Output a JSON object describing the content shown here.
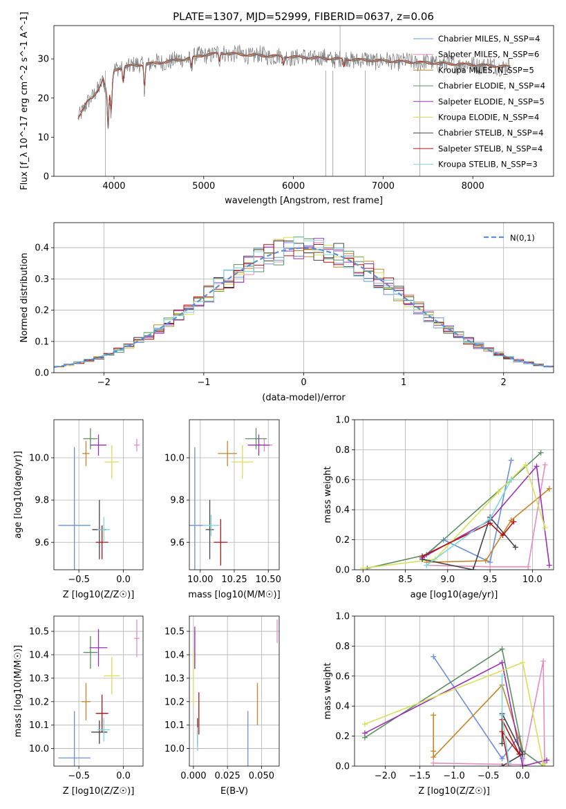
{
  "title": "PLATE=1307, MJD=52999, FIBERID=0637, z=0.06",
  "colors": [
    "#6a8fd8",
    "#e48bbd",
    "#c78424",
    "#5b8d5f",
    "#9a2fb5",
    "#d6e05a",
    "#444444",
    "#b31212",
    "#7ed6dc"
  ],
  "chart_data": [
    {
      "type": "line",
      "id": "spectrum",
      "xlabel": "wavelength [Angstrom, rest frame]",
      "ylabel": "Flux [f_λ 10^-17 erg cm^-2 s^-1 A^-1]",
      "xlim": [
        3330,
        8900
      ],
      "ylim": [
        0,
        38.5
      ],
      "xticks": [
        4000,
        5000,
        6000,
        7000,
        8000
      ],
      "yticks": [
        0,
        10,
        20,
        30
      ],
      "grid": false,
      "legend_position": "top-right",
      "series": [
        {
          "name": "Chabrier MILES, N_SSP=4"
        },
        {
          "name": "Salpeter MILES, N_SSP=6"
        },
        {
          "name": "Kroupa MILES, N_SSP=5"
        },
        {
          "name": "Chabrier ELODIE, N_SSP=4"
        },
        {
          "name": "Salpeter ELODIE, N_SSP=5"
        },
        {
          "name": "Kroupa ELODIE, N_SSP=4"
        },
        {
          "name": "Chabrier STELIB, N_SSP=4"
        },
        {
          "name": "Salpeter STELIB, N_SSP=4"
        },
        {
          "name": "Kroupa STELIB, N_SSP=3"
        }
      ],
      "continuum_points": [
        [
          3600,
          15
        ],
        [
          3650,
          17
        ],
        [
          3700,
          19
        ],
        [
          3760,
          20
        ],
        [
          3820,
          22
        ],
        [
          3880,
          25
        ],
        [
          3930,
          20
        ],
        [
          3970,
          22
        ],
        [
          4000,
          27
        ],
        [
          4100,
          28
        ],
        [
          4300,
          28.5
        ],
        [
          4500,
          29
        ],
        [
          4800,
          30
        ],
        [
          5000,
          31
        ],
        [
          5200,
          31.5
        ],
        [
          5500,
          31
        ],
        [
          6000,
          30.5
        ],
        [
          6500,
          30
        ],
        [
          7000,
          29.5
        ],
        [
          7500,
          29
        ],
        [
          8000,
          28.5
        ],
        [
          8400,
          28
        ]
      ]
    },
    {
      "type": "bar",
      "id": "residuals",
      "xlabel": "(data-model)/error",
      "ylabel": "Normed distribution",
      "xlim": [
        -2.5,
        2.5
      ],
      "ylim": [
        0,
        0.48
      ],
      "xticks": [
        -2,
        -1,
        0,
        1,
        2
      ],
      "xticklabels": [
        "−2",
        "−1",
        "0",
        "1",
        "2"
      ],
      "yticks": [
        0.0,
        0.1,
        0.2,
        0.3,
        0.4
      ],
      "yticklabels": [
        "0.0",
        "0.1",
        "0.2",
        "0.3",
        "0.4"
      ],
      "grid": true,
      "legend_position": "top-right",
      "reference_curve": {
        "name": "N(0,1)",
        "mean": 0,
        "sigma": 1
      },
      "bin_width": 0.1
    },
    {
      "type": "scatter",
      "id": "age-vs-Z",
      "xlabel": "Z [log10(Z/Z☉)]",
      "ylabel": "age  [log10(age/yr)]",
      "xlim": [
        -0.78,
        0.22
      ],
      "ylim": [
        9.47,
        10.18
      ],
      "xticks": [
        -0.5,
        0.0
      ],
      "xticklabels": [
        "−0.5",
        "0.0"
      ],
      "yticks": [
        9.6,
        9.8,
        10.0
      ],
      "yticklabels": [
        "9.6",
        "9.8",
        "10.0"
      ],
      "grid": true,
      "points": [
        {
          "x": -0.55,
          "y": 9.68,
          "xerr": 0.18,
          "yerr": 0.37
        },
        {
          "x": 0.15,
          "y": 10.06,
          "xerr": 0.03,
          "yerr": 0.03
        },
        {
          "x": -0.42,
          "y": 10.02,
          "xerr": 0.04,
          "yerr": 0.06
        },
        {
          "x": -0.37,
          "y": 10.09,
          "xerr": 0.08,
          "yerr": 0.05
        },
        {
          "x": -0.28,
          "y": 10.06,
          "xerr": 0.09,
          "yerr": 0.05
        },
        {
          "x": -0.13,
          "y": 9.98,
          "xerr": 0.08,
          "yerr": 0.08
        },
        {
          "x": -0.27,
          "y": 9.66,
          "xerr": 0.08,
          "yerr": 0.14
        },
        {
          "x": -0.24,
          "y": 9.6,
          "xerr": 0.07,
          "yerr": 0.08
        },
        {
          "x": -0.22,
          "y": 9.66,
          "xerr": 0.07,
          "yerr": 0.06
        }
      ]
    },
    {
      "type": "scatter",
      "id": "age-vs-mass",
      "xlabel": "mass [log10(M/M☉)]",
      "ylabel": "",
      "xlim": [
        9.92,
        10.58
      ],
      "ylim": [
        9.47,
        10.18
      ],
      "xticks": [
        10.0,
        10.25,
        10.5
      ],
      "xticklabels": [
        "10.00",
        "10.25",
        "10.50"
      ],
      "yticks": [
        9.6,
        9.8,
        10.0
      ],
      "yticklabels": [
        "9.6",
        "9.8",
        "10.0"
      ],
      "grid": true,
      "points": [
        {
          "x": 9.96,
          "y": 9.68,
          "xerr": 0.06,
          "yerr": 0.37
        },
        {
          "x": 10.47,
          "y": 10.06,
          "xerr": 0.06,
          "yerr": 0.03
        },
        {
          "x": 10.2,
          "y": 10.02,
          "xerr": 0.07,
          "yerr": 0.06
        },
        {
          "x": 10.41,
          "y": 10.09,
          "xerr": 0.08,
          "yerr": 0.05
        },
        {
          "x": 10.43,
          "y": 10.06,
          "xerr": 0.08,
          "yerr": 0.05
        },
        {
          "x": 10.31,
          "y": 9.98,
          "xerr": 0.08,
          "yerr": 0.08
        },
        {
          "x": 10.07,
          "y": 9.66,
          "xerr": 0.03,
          "yerr": 0.14
        },
        {
          "x": 10.15,
          "y": 9.6,
          "xerr": 0.05,
          "yerr": 0.11
        },
        {
          "x": 10.08,
          "y": 9.68,
          "xerr": 0.06,
          "yerr": 0.05
        }
      ]
    },
    {
      "type": "line",
      "id": "weight-vs-age",
      "xlabel": "age  [log10(age/yr)]",
      "ylabel": "mass weight",
      "xlim": [
        7.9,
        10.25
      ],
      "ylim": [
        0,
        1.0
      ],
      "xticks": [
        8.0,
        8.5,
        9.0,
        9.5,
        10.0
      ],
      "xticklabels": [
        "8.0",
        "8.5",
        "9.0",
        "9.5",
        "10.0"
      ],
      "yticks": [
        0.0,
        0.2,
        0.4,
        0.6,
        0.8,
        1.0
      ],
      "yticklabels": [
        "0.0",
        "0.2",
        "0.4",
        "0.6",
        "0.8",
        "1.0"
      ],
      "grid": true,
      "series": [
        {
          "points": [
            [
              8.7,
              0.08
            ],
            [
              8.95,
              0.2
            ],
            [
              9.5,
              0.05
            ],
            [
              9.75,
              0.73
            ]
          ]
        },
        {
          "points": [
            [
              8.75,
              0.03
            ],
            [
              9.5,
              0.02
            ],
            [
              9.95,
              0.02
            ],
            [
              10.15,
              0.7
            ]
          ]
        },
        {
          "points": [
            [
              8.75,
              0.05
            ],
            [
              9.45,
              0.06
            ],
            [
              9.75,
              0.33
            ],
            [
              10.2,
              0.54
            ]
          ]
        },
        {
          "points": [
            [
              8.05,
              0.01
            ],
            [
              8.75,
              0.1
            ],
            [
              9.75,
              0.6
            ],
            [
              10.1,
              0.78
            ]
          ]
        },
        {
          "points": [
            [
              8.7,
              0.08
            ],
            [
              9.5,
              0.33
            ],
            [
              10.05,
              0.69
            ],
            [
              10.2,
              0.03
            ]
          ]
        },
        {
          "points": [
            [
              8.0,
              0.01
            ],
            [
              8.85,
              0.07
            ],
            [
              9.6,
              0.52
            ],
            [
              9.92,
              0.7
            ],
            [
              10.15,
              0.28
            ]
          ]
        },
        {
          "points": [
            [
              8.7,
              0.07
            ],
            [
              9.3,
              0.0
            ],
            [
              9.5,
              0.35
            ],
            [
              9.8,
              0.15
            ]
          ]
        },
        {
          "points": [
            [
              8.7,
              0.09
            ],
            [
              9.5,
              0.31
            ],
            [
              9.65,
              0.23
            ],
            [
              9.78,
              0.32
            ]
          ]
        },
        {
          "points": [
            [
              8.75,
              0.03
            ],
            [
              9.5,
              0.34
            ],
            [
              9.75,
              0.6
            ]
          ]
        }
      ]
    },
    {
      "type": "scatter",
      "id": "mass-vs-Z",
      "xlabel": "Z [log10(Z/Z☉)]",
      "ylabel": "mass [log10(M/M☉)]",
      "xlim": [
        -0.78,
        0.22
      ],
      "ylim": [
        9.925,
        10.565
      ],
      "xticks": [
        -0.5,
        0.0
      ],
      "xticklabels": [
        "−0.5",
        "0.0"
      ],
      "yticks": [
        10.0,
        10.1,
        10.2,
        10.3,
        10.4,
        10.5
      ],
      "yticklabels": [
        "10.0",
        "10.1",
        "10.2",
        "10.3",
        "10.4",
        "10.5"
      ],
      "grid": true,
      "points": [
        {
          "x": -0.55,
          "y": 9.96,
          "xerr": 0.18,
          "yerr": 0.2
        },
        {
          "x": 0.15,
          "y": 10.47,
          "xerr": 0.03,
          "yerr": 0.08
        },
        {
          "x": -0.42,
          "y": 10.2,
          "xerr": 0.05,
          "yerr": 0.08
        },
        {
          "x": -0.37,
          "y": 10.41,
          "xerr": 0.08,
          "yerr": 0.07
        },
        {
          "x": -0.28,
          "y": 10.43,
          "xerr": 0.1,
          "yerr": 0.08
        },
        {
          "x": -0.13,
          "y": 10.31,
          "xerr": 0.09,
          "yerr": 0.08
        },
        {
          "x": -0.27,
          "y": 10.07,
          "xerr": 0.09,
          "yerr": 0.05
        },
        {
          "x": -0.24,
          "y": 10.15,
          "xerr": 0.07,
          "yerr": 0.08
        },
        {
          "x": -0.22,
          "y": 10.08,
          "xerr": 0.07,
          "yerr": 0.05
        }
      ]
    },
    {
      "type": "scatter",
      "id": "mass-vs-EBV",
      "xlabel": "E(B-V)",
      "ylabel": "",
      "xlim": [
        -0.003,
        0.063
      ],
      "ylim": [
        9.925,
        10.565
      ],
      "xticks": [
        0.0,
        0.025,
        0.05
      ],
      "xticklabels": [
        "0.000",
        "0.025",
        "0.050"
      ],
      "yticks": [
        10.0,
        10.1,
        10.2,
        10.3,
        10.4,
        10.5
      ],
      "yticklabels": [
        "10.0",
        "10.1",
        "10.2",
        "10.3",
        "10.4",
        "10.5"
      ],
      "grid": true,
      "points": [
        {
          "x": 0.04,
          "y": 9.96,
          "xerr": 0,
          "yerr": 0.2
        },
        {
          "x": 0.0615,
          "y": 10.5,
          "xerr": 0,
          "yerr": 0.05
        },
        {
          "x": 0.047,
          "y": 10.19,
          "xerr": 0,
          "yerr": 0.09
        },
        {
          "x": 0.001,
          "y": 10.42,
          "xerr": 0,
          "yerr": 0.08
        },
        {
          "x": 0.001,
          "y": 10.43,
          "xerr": 0,
          "yerr": 0.09
        },
        {
          "x": 0.0,
          "y": 10.3,
          "xerr": 0,
          "yerr": 0.12
        },
        {
          "x": 0.003,
          "y": 10.07,
          "xerr": 0,
          "yerr": 0.06
        },
        {
          "x": 0.004,
          "y": 10.15,
          "xerr": 0,
          "yerr": 0.09
        },
        {
          "x": 0.003,
          "y": 10.04,
          "xerr": 0,
          "yerr": 0.05
        }
      ]
    },
    {
      "type": "line",
      "id": "weight-vs-Z",
      "xlabel": "Z [log10(Z/Z☉)]",
      "ylabel": "mass weight",
      "xlim": [
        -2.45,
        0.45
      ],
      "ylim": [
        0,
        1.0
      ],
      "xticks": [
        -2.0,
        -1.5,
        -1.0,
        -0.5,
        0.0
      ],
      "xticklabels": [
        "−2.0",
        "−1.5",
        "−1.0",
        "−0.5",
        "0.0"
      ],
      "yticks": [
        0.0,
        0.2,
        0.4,
        0.6,
        0.8,
        1.0
      ],
      "yticklabels": [
        "0.0",
        "0.2",
        "0.4",
        "0.6",
        "0.8",
        "1.0"
      ],
      "grid": true,
      "series": [
        {
          "points": [
            [
              -1.3,
              0.73
            ],
            [
              -0.3,
              0.05
            ],
            [
              -0.05,
              0.2
            ],
            [
              0.0,
              0.05
            ]
          ]
        },
        {
          "points": [
            [
              -1.3,
              0.02
            ],
            [
              0.0,
              0.01
            ],
            [
              0.3,
              0.7
            ],
            [
              0.32,
              0.02
            ]
          ]
        },
        {
          "points": [
            [
              -1.3,
              0.1
            ],
            [
              -1.3,
              0.34
            ],
            [
              -1.3,
              0.06
            ],
            [
              -0.3,
              0.54
            ],
            [
              0.0,
              0.1
            ]
          ]
        },
        {
          "points": [
            [
              -2.3,
              0.19
            ],
            [
              -0.3,
              0.78
            ],
            [
              0.0,
              0.1
            ],
            [
              0.3,
              0.0
            ]
          ]
        },
        {
          "points": [
            [
              -2.3,
              0.22
            ],
            [
              -0.3,
              0.69
            ],
            [
              0.0,
              0.0
            ],
            [
              0.35,
              0.04
            ]
          ]
        },
        {
          "points": [
            [
              -2.3,
              0.28
            ],
            [
              0.0,
              0.69
            ],
            [
              0.3,
              0.01
            ],
            [
              0.32,
              0.0
            ]
          ]
        },
        {
          "points": [
            [
              -0.3,
              0.0
            ],
            [
              0.0,
              0.08
            ],
            [
              -0.3,
              0.35
            ],
            [
              -0.3,
              0.15
            ]
          ]
        },
        {
          "points": [
            [
              -0.3,
              0.31
            ],
            [
              -0.05,
              0.08
            ],
            [
              -0.3,
              0.23
            ],
            [
              -0.2,
              0.0
            ]
          ]
        },
        {
          "points": [
            [
              -0.3,
              0.6
            ],
            [
              -0.3,
              0.34
            ],
            [
              -0.2,
              0.02
            ]
          ]
        }
      ]
    }
  ]
}
